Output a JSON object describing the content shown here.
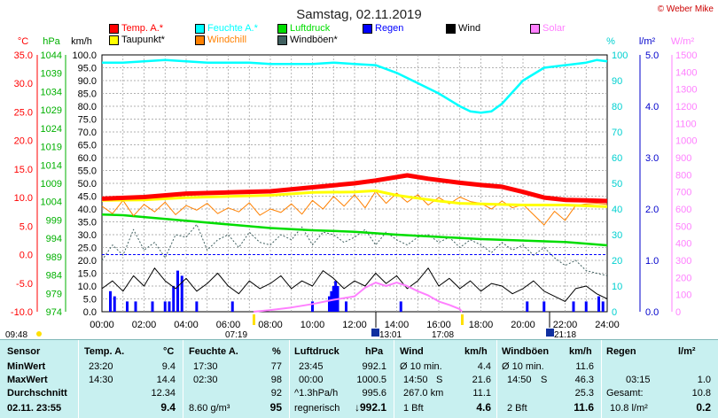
{
  "chart_data": {
    "type": "line",
    "title": "Samstag, 02.11.2019",
    "copyright": "© Weber Mike",
    "x_tick_labels": [
      "00:00",
      "02:00",
      "04:00",
      "06:00",
      "08:00",
      "10:00",
      "12:00",
      "14:00",
      "16:00",
      "18:00",
      "20:00",
      "22:00",
      "24:00"
    ],
    "x_range": [
      0,
      24
    ],
    "axes": {
      "temp_c": {
        "unit": "°C",
        "color": "#ff0000",
        "range": [
          -10,
          35
        ],
        "ticks": [
          "35.0",
          "30.0",
          "25.0",
          "20.0",
          "15.0",
          "10.0",
          "5.0",
          "0.0",
          "-5.0",
          "-10.0"
        ]
      },
      "hpa": {
        "unit": "hPa",
        "color": "#00b000",
        "range": [
          974,
          1044
        ],
        "ticks": [
          "1044",
          "1039",
          "1034",
          "1029",
          "1024",
          "1019",
          "1014",
          "1009",
          "1004",
          "999",
          "994",
          "989",
          "984",
          "979",
          "974"
        ]
      },
      "kmh": {
        "unit": "km/h",
        "color": "#000000",
        "range": [
          0,
          100
        ],
        "ticks": [
          "100.0",
          "95.0",
          "90.0",
          "85.0",
          "80.0",
          "75.0",
          "70.0",
          "65.0",
          "60.0",
          "55.0",
          "50.0",
          "45.0",
          "40.0",
          "35.0",
          "30.0",
          "25.0",
          "20.0",
          "15.0",
          "10.0",
          "5.0",
          "0.0"
        ]
      },
      "humidity": {
        "unit": "%",
        "color": "#00d0d0",
        "range": [
          0,
          100
        ],
        "ticks": [
          "100",
          "90",
          "80",
          "70",
          "60",
          "50",
          "40",
          "30",
          "20",
          "10",
          "0"
        ]
      },
      "rain": {
        "unit": "l/m²",
        "color": "#0000cc",
        "range": [
          0,
          5
        ],
        "ticks": [
          "5.0",
          "4.0",
          "3.0",
          "2.0",
          "1.0",
          "0.0"
        ]
      },
      "solar": {
        "unit": "W/m²",
        "color": "#ff80ff",
        "range": [
          0,
          1500
        ],
        "ticks": [
          "1500",
          "1400",
          "1300",
          "1200",
          "1100",
          "1000",
          "900",
          "800",
          "700",
          "600",
          "500",
          "400",
          "300",
          "200",
          "100",
          "0"
        ]
      }
    },
    "legend": [
      {
        "label": "Temp. A.*",
        "color": "#ff0000"
      },
      {
        "label": "Feuchte A.*",
        "color": "#00ffff"
      },
      {
        "label": "Luftdruck",
        "color": "#00dd00"
      },
      {
        "label": "Regen",
        "color": "#0000ff"
      },
      {
        "label": "Wind",
        "color": "#000000"
      },
      {
        "label": "Solar",
        "color": "#ff80ff"
      },
      {
        "label": "Taupunkt*",
        "color": "#ffff00"
      },
      {
        "label": "Windchill",
        "color": "#ff8000"
      },
      {
        "label": "Windböen*",
        "color": "#406060"
      }
    ],
    "series": [
      {
        "name": "Temp. A.*",
        "axis": "temp_c",
        "color": "#ff0000",
        "x": [
          0,
          2,
          4,
          6,
          8,
          10,
          12,
          13,
          14.5,
          15.5,
          17,
          18,
          19,
          20,
          21,
          22,
          23,
          24
        ],
        "y": [
          9.8,
          10.1,
          10.7,
          10.9,
          11.1,
          11.8,
          12.5,
          13.0,
          13.9,
          13.3,
          12.6,
          12.2,
          11.9,
          11.0,
          10.0,
          9.6,
          9.5,
          9.4
        ]
      },
      {
        "name": "Taupunkt*",
        "axis": "temp_c",
        "color": "#ffff00",
        "x": [
          0,
          2,
          4,
          6,
          8,
          10,
          12,
          13,
          14,
          15,
          16,
          17,
          18,
          20,
          22,
          24
        ],
        "y": [
          9.5,
          9.6,
          10.0,
          10.2,
          10.4,
          10.9,
          11.0,
          11.2,
          10.4,
          9.9,
          9.4,
          9.0,
          8.9,
          8.7,
          8.7,
          8.4
        ]
      },
      {
        "name": "Feuchte A.*",
        "axis": "humidity",
        "color": "#00ffff",
        "x": [
          0,
          1,
          2,
          3,
          4,
          5,
          6,
          7,
          8,
          9,
          10,
          11,
          12,
          13,
          14,
          15,
          16,
          17,
          17.5,
          18,
          18.5,
          19,
          20,
          21,
          22,
          23,
          23.5,
          24
        ],
        "y": [
          97,
          97,
          97.5,
          98,
          97.5,
          97,
          97,
          97,
          96.5,
          96.5,
          96.5,
          97,
          96.5,
          96,
          93,
          89,
          85,
          80,
          78,
          77.5,
          78,
          81,
          90,
          95,
          96,
          97,
          98,
          97.5
        ]
      },
      {
        "name": "Luftdruck",
        "axis": "hpa",
        "color": "#00dd00",
        "x": [
          0,
          1,
          2,
          4,
          6,
          8,
          10,
          12,
          14,
          16,
          18,
          20,
          22,
          24
        ],
        "y": [
          1000.5,
          1000.3,
          999.8,
          998.8,
          997.8,
          996.8,
          996.2,
          995.8,
          995.0,
          994.4,
          993.8,
          993.4,
          993.0,
          992.1
        ]
      },
      {
        "name": "Windchill",
        "axis": "temp_c",
        "color": "#ff8000",
        "x": [
          0,
          0.5,
          1,
          1.5,
          2,
          2.5,
          3,
          3.5,
          4,
          4.5,
          5,
          5.5,
          6,
          6.5,
          7,
          7.5,
          8,
          8.5,
          9,
          9.5,
          10,
          10.5,
          11,
          11.5,
          12,
          12.5,
          13,
          13.5,
          14,
          14.5,
          15,
          15.5,
          16,
          16.5,
          17,
          17.5,
          18,
          18.5,
          19,
          19.5,
          20,
          20.5,
          21,
          21.5,
          22,
          22.5,
          23,
          23.5,
          24
        ],
        "y": [
          8.5,
          7.2,
          9.5,
          6.8,
          8.8,
          7.5,
          9.2,
          7.0,
          8.6,
          7.8,
          9.0,
          7.2,
          8.2,
          7.5,
          9.1,
          6.9,
          8.0,
          7.4,
          8.9,
          7.1,
          9.5,
          8.0,
          10.2,
          8.5,
          10.5,
          8.2,
          11.1,
          9.0,
          10.8,
          9.2,
          10.5,
          8.7,
          10.0,
          8.9,
          10.1,
          9.3,
          9.0,
          8.0,
          9.4,
          8.2,
          8.8,
          7.0,
          5.2,
          7.6,
          6.0,
          8.6,
          8.9,
          9.0,
          8.8
        ]
      },
      {
        "name": "Wind",
        "axis": "kmh",
        "color": "#000000",
        "x": [
          0,
          0.5,
          1,
          1.5,
          2,
          2.5,
          3,
          3.5,
          4,
          4.5,
          5,
          5.5,
          6,
          6.5,
          7,
          7.5,
          8,
          8.5,
          9,
          9.5,
          10,
          10.5,
          11,
          11.5,
          12,
          12.5,
          13,
          13.5,
          14,
          14.5,
          15,
          15.5,
          16,
          16.5,
          17,
          17.5,
          18,
          18.5,
          19,
          19.5,
          20,
          20.5,
          21,
          21.5,
          22,
          22.5,
          23,
          23.5,
          24
        ],
        "y": [
          9,
          12,
          8,
          14,
          10,
          17,
          12,
          9,
          13,
          8,
          11,
          15,
          10,
          7,
          12,
          9,
          11,
          14,
          9,
          12,
          10,
          16,
          13,
          9,
          12,
          10,
          15,
          11,
          14,
          9,
          12,
          17,
          10,
          13,
          9,
          12,
          8,
          11,
          10,
          7,
          9,
          12,
          8,
          6,
          4,
          9,
          10,
          7,
          5
        ]
      },
      {
        "name": "Windböen*",
        "axis": "kmh",
        "color": "#406060",
        "x": [
          0,
          0.5,
          1,
          1.5,
          2,
          2.5,
          3,
          3.5,
          4,
          4.5,
          5,
          5.5,
          6,
          6.5,
          7,
          7.5,
          8,
          8.5,
          9,
          9.5,
          10,
          10.5,
          11,
          11.5,
          12,
          12.5,
          13,
          13.5,
          14,
          14.5,
          15,
          15.5,
          16,
          16.5,
          17,
          17.5,
          18,
          18.5,
          19,
          19.5,
          20,
          20.5,
          21,
          21.5,
          22,
          22.5,
          23,
          23.5,
          24
        ],
        "y": [
          20,
          26,
          22,
          32,
          24,
          27,
          21,
          30,
          29,
          34,
          24,
          28,
          30,
          25,
          31,
          27,
          26,
          30,
          28,
          33,
          26,
          31,
          30,
          27,
          29,
          32,
          26,
          31,
          28,
          26,
          29,
          30,
          27,
          29,
          25,
          28,
          26,
          23,
          27,
          24,
          26,
          22,
          25,
          21,
          18,
          20,
          16,
          15,
          14
        ]
      },
      {
        "name": "Solar",
        "axis": "solar",
        "color": "#ff80ff",
        "x": [
          7.2,
          8,
          9,
          10,
          11,
          12,
          12.5,
          13,
          13.5,
          14,
          14.5,
          15,
          15.5,
          16,
          16.5,
          17,
          17.1
        ],
        "y": [
          0,
          10,
          25,
          45,
          70,
          90,
          140,
          170,
          150,
          170,
          150,
          120,
          95,
          60,
          40,
          15,
          0
        ]
      },
      {
        "name": "Regen",
        "axis": "rain",
        "color": "#0000ff",
        "type": "bar",
        "x": [
          0.4,
          0.6,
          1.2,
          1.6,
          2.4,
          3.0,
          3.2,
          3.4,
          3.6,
          3.8,
          4.5,
          6.2,
          10.0,
          10.8,
          10.9,
          11.0,
          11.1,
          11.2,
          11.6,
          14.2,
          20.2,
          21.0,
          22.4,
          23.0,
          23.6,
          23.8
        ],
        "y": [
          0.4,
          0.3,
          0.2,
          0.2,
          0.2,
          0.2,
          0.2,
          0.5,
          0.8,
          0.7,
          0.2,
          0.2,
          0.2,
          0.3,
          0.4,
          0.5,
          0.6,
          0.5,
          0.2,
          0.2,
          0.2,
          0.2,
          0.2,
          0.2,
          0.3,
          0.2
        ]
      }
    ],
    "reference_line": {
      "axis": "temp_c",
      "value": 0.0,
      "color": "#0000ff"
    }
  },
  "sun_markers": {
    "sunrise": "07:19",
    "sunset": "17:08",
    "moonrise": "13:01",
    "moonset": "21:18",
    "start": "09:48"
  },
  "table": {
    "headers": {
      "sensor": "Sensor",
      "temp": "Temp. A.",
      "temp_unit": "°C",
      "feuchte": "Feuchte A.",
      "feuchte_unit": "%",
      "luftdruck": "Luftdruck",
      "luftdruck_unit": "hPa",
      "wind": "Wind",
      "wind_unit": "km/h",
      "windboeen": "Windböen",
      "windboeen_unit": "km/h",
      "regen": "Regen",
      "regen_unit": "l/m²"
    },
    "row_labels": {
      "min": "MinWert",
      "max": "MaxWert",
      "avg": "Durchschnitt",
      "now": "02.11. 23:55"
    },
    "temp": {
      "min_time": "23:20",
      "min_val": "9.4",
      "max_time": "14:30",
      "max_val": "14.4",
      "avg_val": "12.34",
      "now_val": "9.4"
    },
    "feuchte": {
      "min_time": "17:30",
      "min_val": "77",
      "max_time": "02:30",
      "max_val": "98",
      "avg_val": "92",
      "now_extra": "8.60 g/m³",
      "now_val": "95"
    },
    "luftdruck": {
      "min_time": "23:45",
      "min_val": "992.1",
      "max_time": "00:00",
      "max_val": "1000.5",
      "avg_extra": "^1.3hPa/h",
      "avg_val": "995.6",
      "now_extra": "regnerisch",
      "now_val": "↓992.1"
    },
    "wind": {
      "min_extra": "Ø 10 min.",
      "min_val": "4.4",
      "max_time": "14:50",
      "max_dir": "S",
      "max_val": "21.6",
      "avg_extra": "267.0 km",
      "avg_val": "11.1",
      "now_extra": "1 Bft",
      "now_val": "4.6"
    },
    "windboeen": {
      "min_extra": "Ø 10 min.",
      "min_val": "11.6",
      "max_time": "14:50",
      "max_dir": "S",
      "max_val": "46.3",
      "avg_val": "25.3",
      "now_extra": "2 Bft",
      "now_val": "11.6"
    },
    "regen": {
      "max_time": "03:15",
      "max_val": "1.0",
      "avg_extra": "Gesamt:",
      "avg_val": "10.8",
      "now_extra": "10.8 l/m²",
      "now_val": "0.2"
    }
  }
}
